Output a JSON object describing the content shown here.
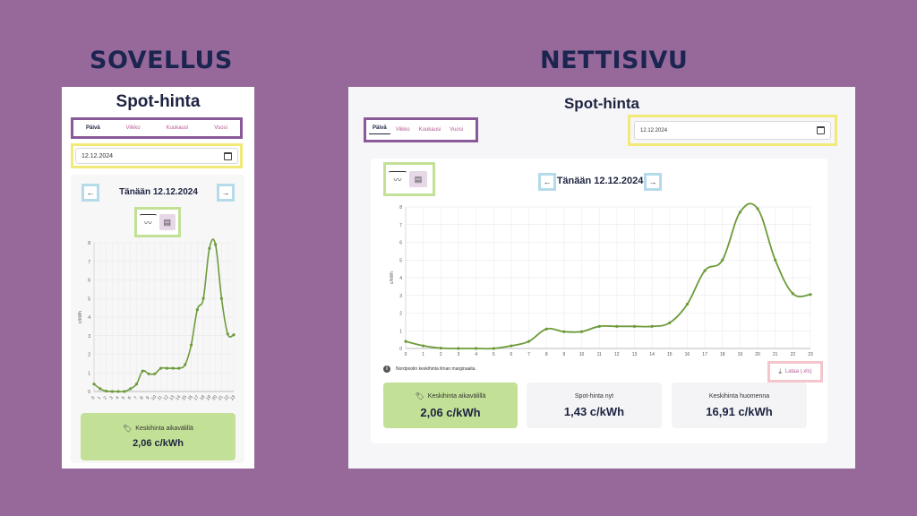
{
  "sections": {
    "app_title": "SOVELLUS",
    "web_title": "NETTISIVU"
  },
  "page_heading": "Spot-hinta",
  "tabs": [
    "Päivä",
    "Viikko",
    "Kuukausi",
    "Vuosi"
  ],
  "active_tab": "Päivä",
  "date_value": "12.12.2024",
  "icons": {
    "calendar": "calendar-icon",
    "prev": "arrow-left-icon",
    "next": "arrow-right-icon",
    "chart_view": "line-chart-icon",
    "table_view": "table-icon",
    "tag": "tag-icon",
    "info": "info-icon",
    "download": "download-icon"
  },
  "app": {
    "day_title": "Tänään 12.12.2024",
    "card_label": "Keskihinta aikavälillä",
    "card_value": "2,06 c/kWh"
  },
  "web": {
    "day_title": "Tänään 12.12.2024",
    "note": "Nordpoolin keskihinta ilman marginaalia.",
    "download_label": "Lataa (.xls)",
    "cards": [
      {
        "label": "Keskihinta aikavälillä",
        "value": "2,06 c/kWh"
      },
      {
        "label": "Spot-hinta nyt",
        "value": "1,43 c/kWh"
      },
      {
        "label": "Keskihinta huomenna",
        "value": "16,91 c/kWh"
      }
    ]
  },
  "colors": {
    "background": "#96699a",
    "line": "#6d9b3a",
    "green_card": "#c3e196",
    "highlight_purple": "#8a5a98",
    "highlight_yellow": "#f1e978",
    "highlight_blue": "#b5dbea",
    "highlight_green": "#c2e096",
    "highlight_pink": "#f4c6cb"
  },
  "chart_data": [
    {
      "type": "line",
      "ylabel": "c/kWh",
      "ylim": [
        0,
        8
      ],
      "yticks": [
        0,
        1,
        2,
        3,
        4,
        5,
        6,
        7,
        8
      ],
      "x": [
        0,
        1,
        2,
        3,
        4,
        5,
        6,
        7,
        8,
        9,
        10,
        11,
        12,
        13,
        14,
        15,
        16,
        17,
        18,
        19,
        20,
        21,
        22,
        23
      ],
      "values": [
        0.4,
        0.15,
        0.02,
        0.0,
        0.0,
        0.0,
        0.15,
        0.4,
        1.1,
        0.95,
        0.95,
        1.25,
        1.25,
        1.25,
        1.25,
        1.45,
        2.5,
        4.4,
        5.0,
        7.7,
        7.9,
        5.0,
        3.1,
        3.05
      ],
      "grid": true
    },
    {
      "type": "line",
      "ylabel": "c/kWh",
      "ylim": [
        0,
        8
      ],
      "yticks": [
        0,
        1,
        2,
        3,
        4,
        5,
        6,
        7,
        8
      ],
      "x": [
        0,
        1,
        2,
        3,
        4,
        5,
        6,
        7,
        8,
        9,
        10,
        11,
        12,
        13,
        14,
        15,
        16,
        17,
        18,
        19,
        20,
        21,
        22,
        23
      ],
      "values": [
        0.4,
        0.15,
        0.02,
        0.0,
        0.0,
        0.0,
        0.15,
        0.4,
        1.1,
        0.95,
        0.95,
        1.25,
        1.25,
        1.25,
        1.25,
        1.45,
        2.5,
        4.4,
        5.0,
        7.7,
        7.9,
        5.0,
        3.1,
        3.05
      ],
      "grid": true
    }
  ]
}
